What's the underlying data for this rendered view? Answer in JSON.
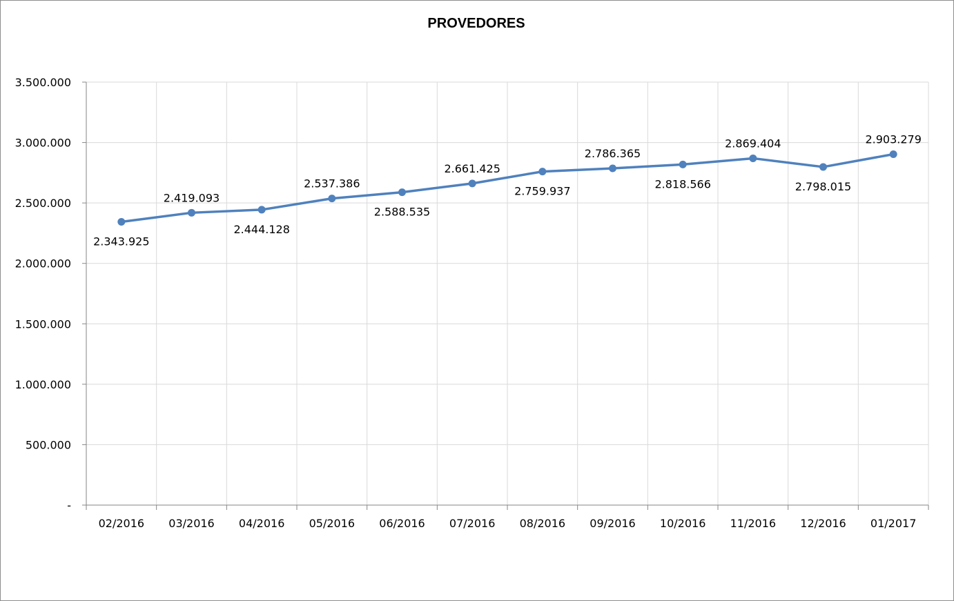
{
  "chart_data": {
    "type": "line",
    "title": "PROVEDORES",
    "xlabel": "",
    "ylabel": "",
    "categories": [
      "02/2016",
      "03/2016",
      "04/2016",
      "05/2016",
      "06/2016",
      "07/2016",
      "08/2016",
      "09/2016",
      "10/2016",
      "11/2016",
      "12/2016",
      "01/2017"
    ],
    "series": [
      {
        "values": [
          2343925,
          2419093,
          2444128,
          2537386,
          2588535,
          2661425,
          2759937,
          2786365,
          2818566,
          2869404,
          2798015,
          2903279
        ],
        "data_labels": [
          "2.343.925",
          "2.419.093",
          "2.444.128",
          "2.537.386",
          "2.588.535",
          "2.661.425",
          "2.759.937",
          "2.786.365",
          "2.818.566",
          "2.869.404",
          "2.798.015",
          "2.903.279"
        ],
        "label_positions": [
          "below",
          "above",
          "below",
          "above",
          "below",
          "above",
          "below",
          "above",
          "below",
          "above",
          "below",
          "above"
        ],
        "color": "#4f81bd"
      }
    ],
    "ylim": [
      0,
      3500000
    ],
    "y_ticks": [
      0,
      500000,
      1000000,
      1500000,
      2000000,
      2500000,
      3000000,
      3500000
    ],
    "y_tick_labels": [
      "-",
      "500.000",
      "1.000.000",
      "1.500.000",
      "2.000.000",
      "2.500.000",
      "3.000.000",
      "3.500.000"
    ],
    "grid": true,
    "grid_color": "#d9d9d9",
    "axis_color": "#868686"
  }
}
